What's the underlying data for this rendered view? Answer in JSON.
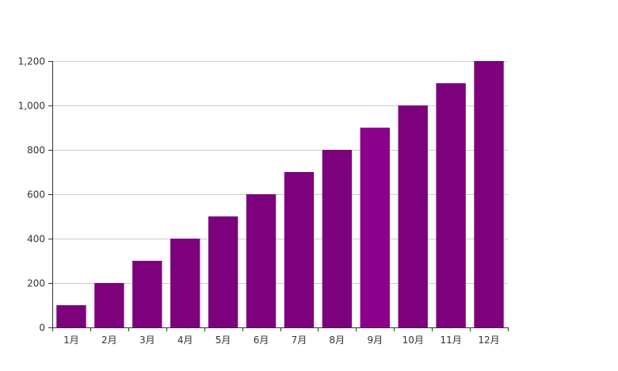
{
  "chart_data": {
    "type": "bar",
    "categories": [
      "1月",
      "2月",
      "3月",
      "4月",
      "5月",
      "6月",
      "7月",
      "8月",
      "9月",
      "10月",
      "11月",
      "12月"
    ],
    "values": [
      100,
      200,
      300,
      400,
      500,
      600,
      700,
      800,
      900,
      1000,
      1100,
      1200
    ],
    "ylim": [
      0,
      1200
    ],
    "yticks": [
      "0",
      "200",
      "400",
      "600",
      "800",
      "1,000",
      "1,200"
    ],
    "grid": true,
    "colors": {
      "bar": "#7d007d",
      "bar_highlight": "#8c008c",
      "axis": "#333333",
      "grid": "#cccccc",
      "text": "#333333"
    },
    "highlight_index": 8
  }
}
